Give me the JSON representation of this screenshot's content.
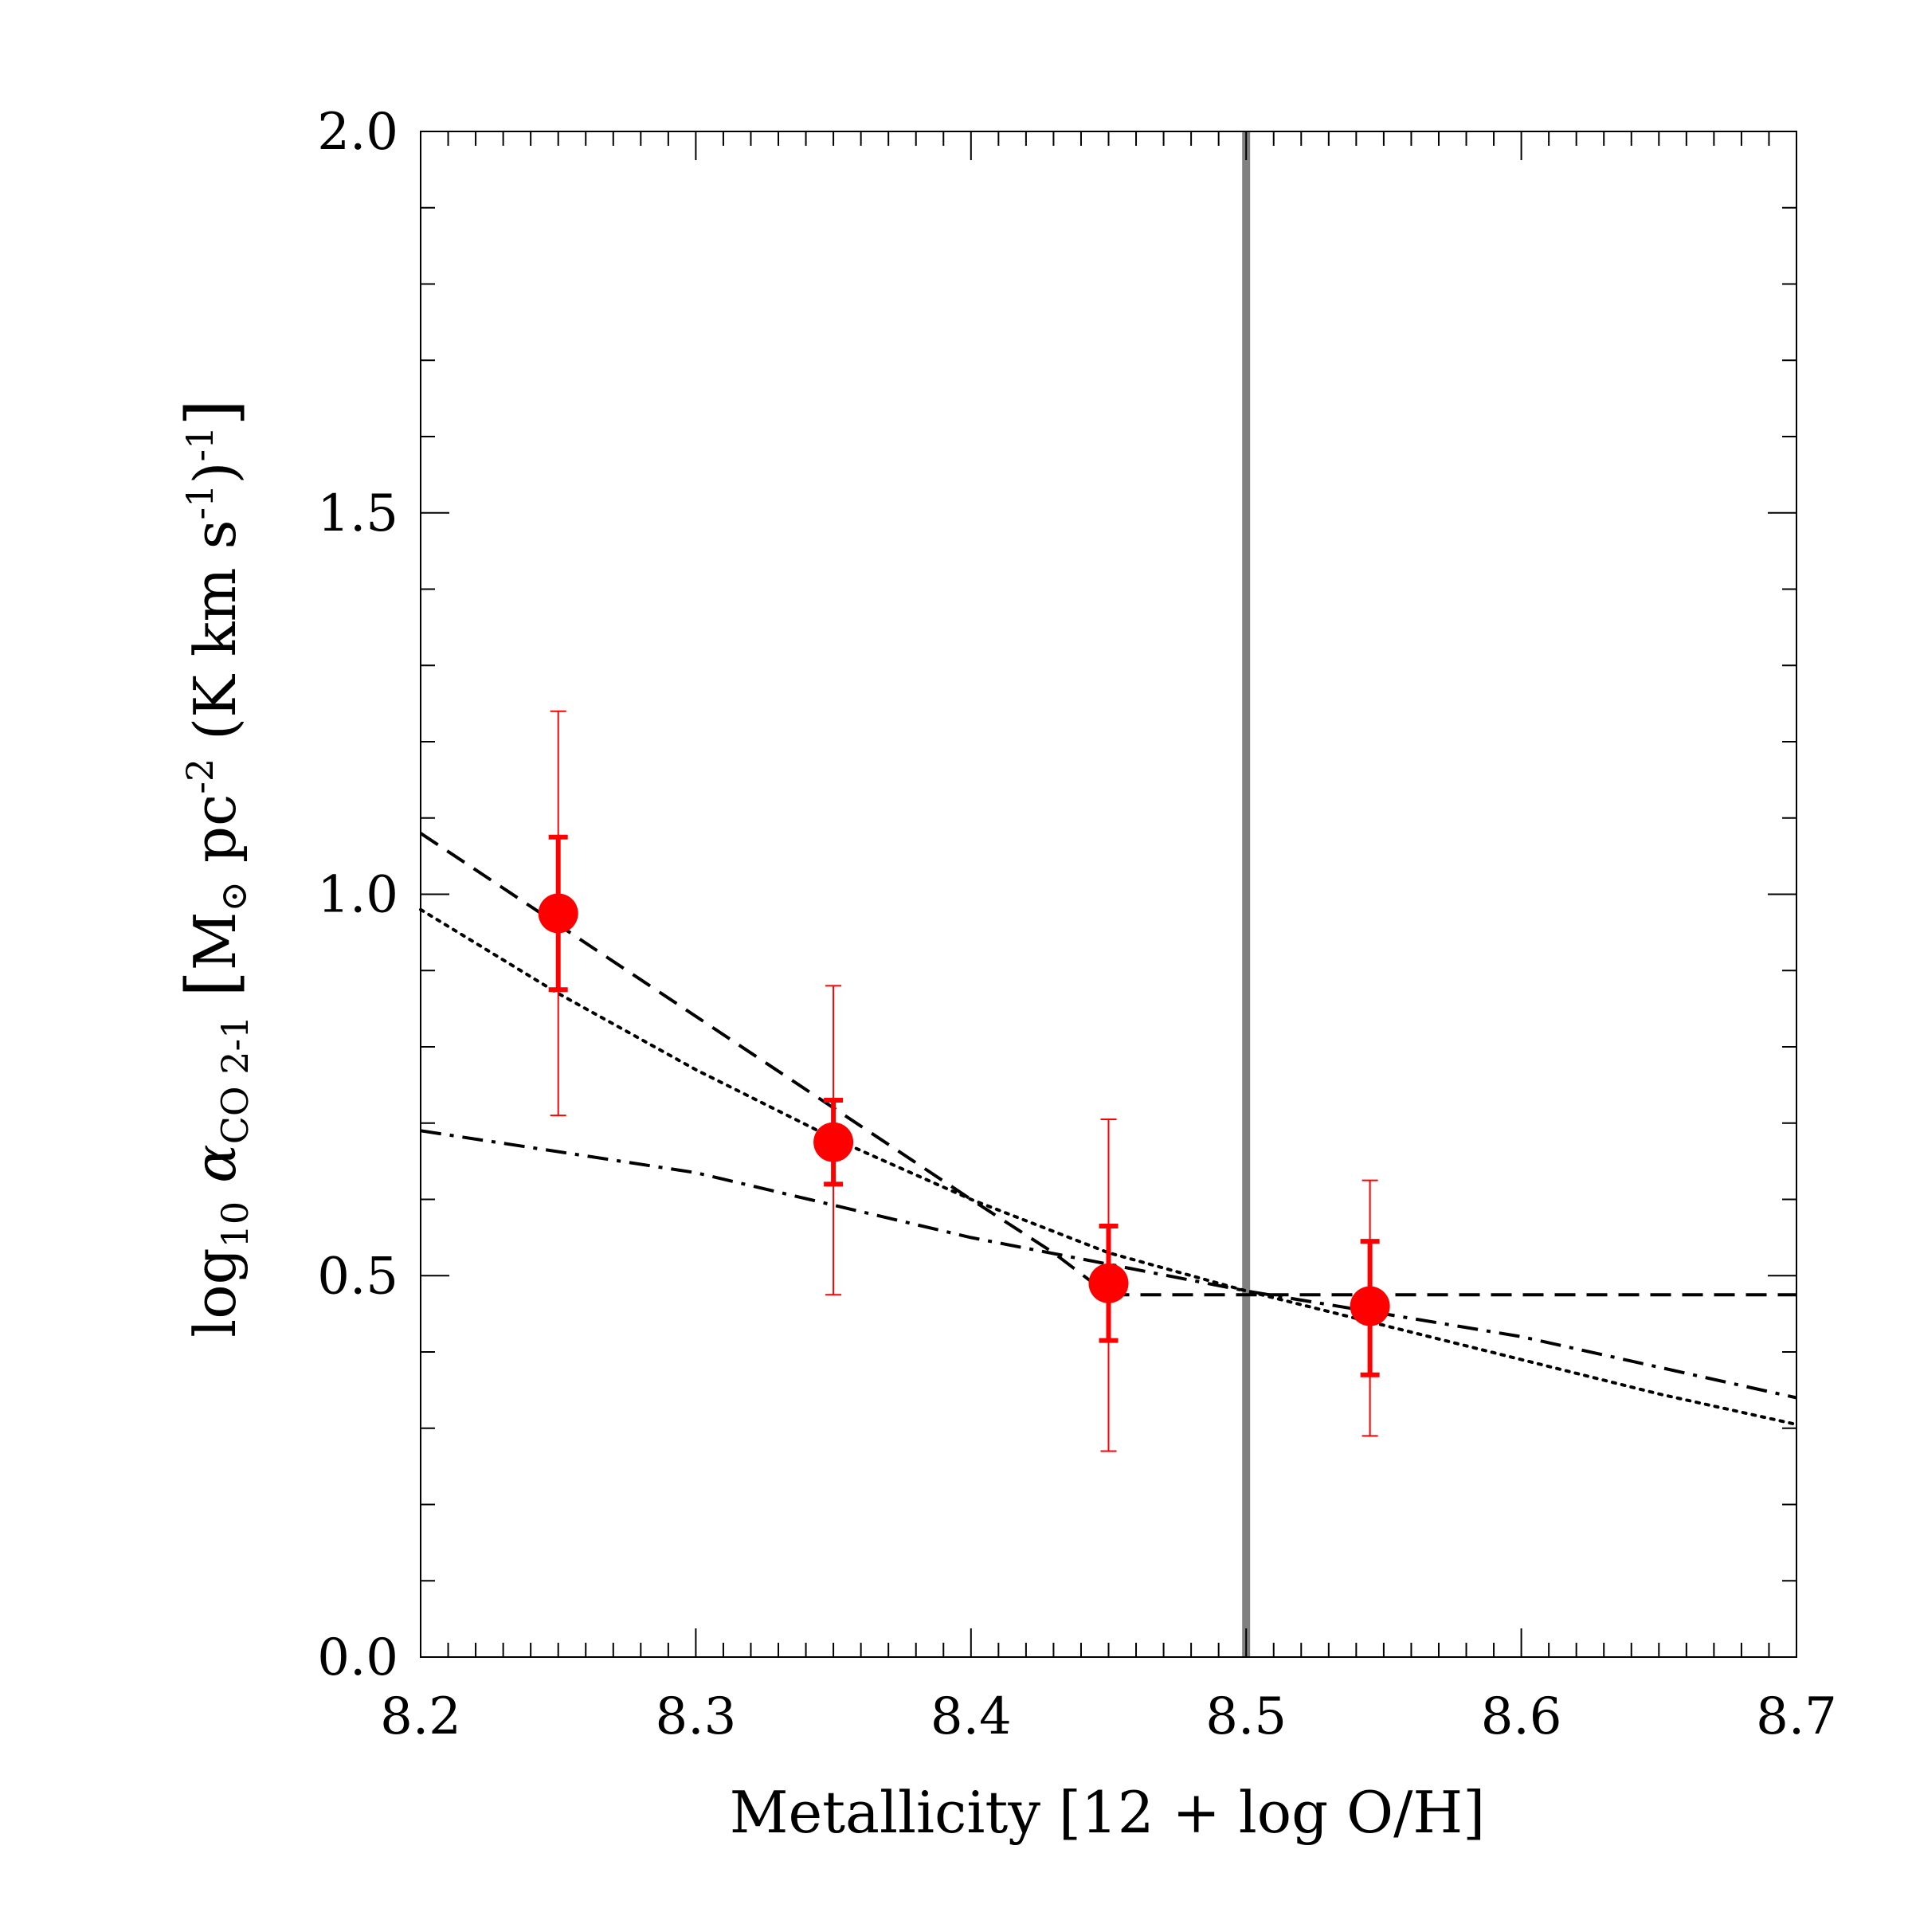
{
  "chart_data": {
    "type": "scatter",
    "xlabel": "Metallicity [12 + log O/H]",
    "ylabel": {
      "prefix": "log",
      "prefix_sub": "10",
      "symbol": "α",
      "symbol_sub": "CO 2-1",
      "open_bracket": "[",
      "unit_mass": "M",
      "unit_mass_sub": "⊙",
      "unit_pc": " pc",
      "unit_pc_sup": "-2",
      "unit_rest": " (K km s",
      "unit_rest_sup": "-1",
      "unit_close": ")",
      "unit_close_sup": "-1",
      "close_bracket": "]"
    },
    "xlim": [
      8.2,
      8.7
    ],
    "ylim": [
      0.0,
      2.0
    ],
    "xticks": [
      "8.2",
      "8.3",
      "8.4",
      "8.5",
      "8.6",
      "8.7"
    ],
    "yticks": [
      "0.0",
      "0.5",
      "1.0",
      "1.5",
      "2.0"
    ],
    "grid": false,
    "colors": {
      "points": "#ff0000",
      "reference_line": "#808080",
      "curves": "#000000"
    },
    "points": [
      {
        "x": 8.25,
        "y": 0.975,
        "err_inner": [
          0.875,
          1.075
        ],
        "err_outer": [
          0.71,
          1.24
        ]
      },
      {
        "x": 8.35,
        "y": 0.675,
        "err_inner": [
          0.62,
          0.73
        ],
        "err_outer": [
          0.475,
          0.88
        ]
      },
      {
        "x": 8.45,
        "y": 0.49,
        "err_inner": [
          0.415,
          0.565
        ],
        "err_outer": [
          0.27,
          0.705
        ]
      },
      {
        "x": 8.545,
        "y": 0.46,
        "err_inner": [
          0.37,
          0.545
        ],
        "err_outer": [
          0.29,
          0.625
        ]
      }
    ],
    "vertical_line": {
      "x": 8.5
    },
    "curves": [
      {
        "style": "dashed",
        "x": [
          8.2,
          8.25,
          8.3,
          8.35,
          8.4,
          8.43,
          8.45,
          8.5,
          8.55,
          8.6,
          8.65,
          8.7
        ],
        "y": [
          1.08,
          0.96,
          0.84,
          0.72,
          0.6,
          0.53,
          0.475,
          0.475,
          0.475,
          0.475,
          0.475,
          0.475
        ]
      },
      {
        "style": "dotted",
        "x": [
          8.2,
          8.25,
          8.3,
          8.35,
          8.4,
          8.45,
          8.5,
          8.55,
          8.6,
          8.65,
          8.7
        ],
        "y": [
          0.98,
          0.87,
          0.77,
          0.68,
          0.6,
          0.53,
          0.48,
          0.435,
          0.39,
          0.345,
          0.305
        ]
      },
      {
        "style": "dashdot",
        "x": [
          8.2,
          8.3,
          8.4,
          8.5,
          8.6,
          8.7
        ],
        "y": [
          0.69,
          0.635,
          0.55,
          0.48,
          0.42,
          0.34
        ]
      }
    ]
  }
}
